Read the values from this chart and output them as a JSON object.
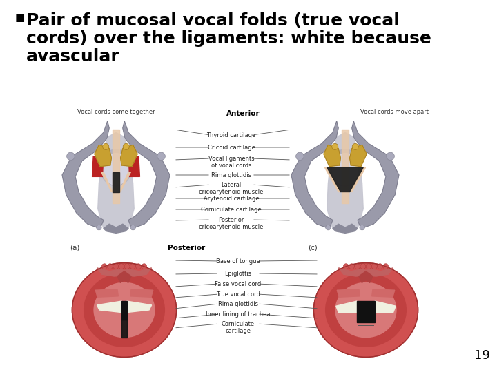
{
  "bg_color": "#ffffff",
  "title_line1": "Pair of mucosal vocal folds (true vocal",
  "title_line2": "cords) over the ligaments: white because",
  "title_line3": "avascular",
  "title_fontsize": 18,
  "title_color": "#000000",
  "page_number": "19",
  "page_number_fontsize": 13,
  "top_left_label": "Vocal cords come together",
  "top_right_label": "Vocal cords move apart",
  "sub_label_anterior": "Anterior",
  "sub_label_posterior": "Posterior",
  "sub_label_a": "(a)",
  "sub_label_c": "(c)",
  "upper_annotations": [
    [
      "Thyroid cartilage",
      380,
      207,
      295,
      204
    ],
    [
      "Cricoid cartilage",
      380,
      222,
      295,
      225
    ],
    [
      "Vocal ligaments\nof vocal cords",
      380,
      237,
      295,
      242
    ],
    [
      "Rima glottidis",
      380,
      258,
      295,
      260
    ],
    [
      "Lateral\ncricoarytenoid muscle",
      380,
      273,
      295,
      278
    ],
    [
      "Arytenoid cartilage",
      380,
      295,
      295,
      296
    ],
    [
      "Corniculate cartilage",
      380,
      308,
      295,
      310
    ],
    [
      "Posterior\ncricoarytenoid muscle",
      380,
      321,
      295,
      325
    ]
  ],
  "lower_annotations": [
    [
      "Base of tongue",
      340,
      388,
      240,
      388
    ],
    [
      "Epiglottis",
      340,
      408,
      240,
      413
    ],
    [
      "False vocal cord",
      340,
      420,
      240,
      425
    ],
    [
      "True vocal cord",
      340,
      432,
      240,
      437
    ],
    [
      "Rima glottidis",
      340,
      444,
      240,
      449
    ],
    [
      "Inner lining of trachea",
      340,
      456,
      240,
      460
    ],
    [
      "Corniculate\ncartilage",
      340,
      468,
      240,
      475
    ]
  ],
  "figsize": [
    7.2,
    5.4
  ],
  "dpi": 100
}
